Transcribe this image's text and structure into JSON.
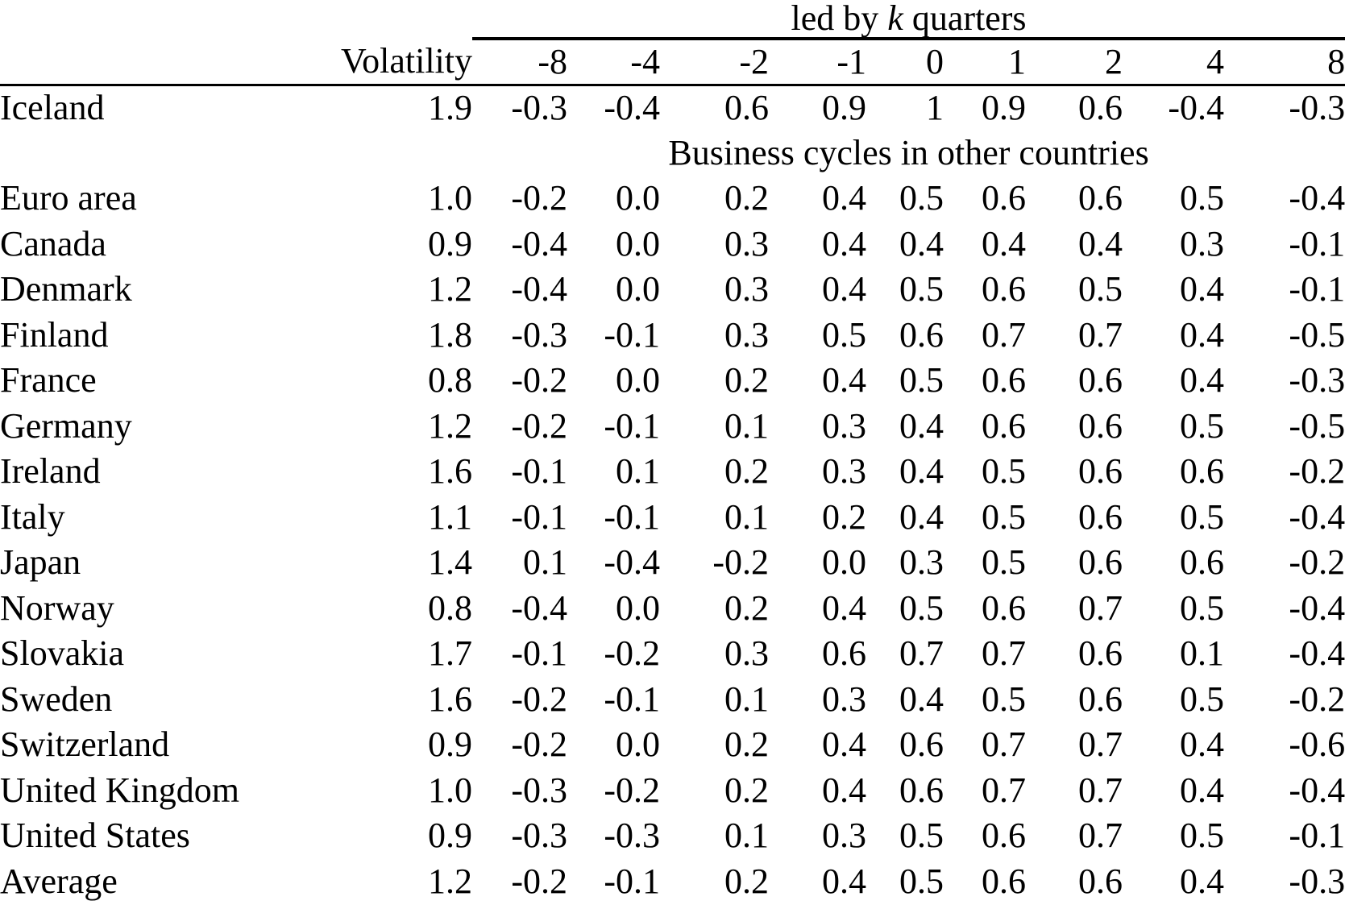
{
  "table": {
    "spanner": {
      "prefix": "led by ",
      "k": "k",
      "suffix": " quarters"
    },
    "volatility_header": "Volatility",
    "lead_headers": [
      "-8",
      "-4",
      "-2",
      "-1",
      "0",
      "1",
      "2",
      "4",
      "8"
    ],
    "body": [
      {
        "type": "data",
        "country": "Iceland",
        "volatility": "1.9",
        "values": [
          "-0.3",
          "-0.4",
          "0.6",
          "0.9",
          "1",
          "0.9",
          "0.6",
          "-0.4",
          "-0.3"
        ]
      },
      {
        "type": "section",
        "label": "Business cycles in other countries"
      },
      {
        "type": "data",
        "country": "Euro area",
        "volatility": "1.0",
        "values": [
          "-0.2",
          "0.0",
          "0.2",
          "0.4",
          "0.5",
          "0.6",
          "0.6",
          "0.5",
          "-0.4"
        ]
      },
      {
        "type": "data",
        "country": "Canada",
        "volatility": "0.9",
        "values": [
          "-0.4",
          "0.0",
          "0.3",
          "0.4",
          "0.4",
          "0.4",
          "0.4",
          "0.3",
          "-0.1"
        ]
      },
      {
        "type": "data",
        "country": "Denmark",
        "volatility": "1.2",
        "values": [
          "-0.4",
          "0.0",
          "0.3",
          "0.4",
          "0.5",
          "0.6",
          "0.5",
          "0.4",
          "-0.1"
        ]
      },
      {
        "type": "data",
        "country": "Finland",
        "volatility": "1.8",
        "values": [
          "-0.3",
          "-0.1",
          "0.3",
          "0.5",
          "0.6",
          "0.7",
          "0.7",
          "0.4",
          "-0.5"
        ]
      },
      {
        "type": "data",
        "country": "France",
        "volatility": "0.8",
        "values": [
          "-0.2",
          "0.0",
          "0.2",
          "0.4",
          "0.5",
          "0.6",
          "0.6",
          "0.4",
          "-0.3"
        ]
      },
      {
        "type": "data",
        "country": "Germany",
        "volatility": "1.2",
        "values": [
          "-0.2",
          "-0.1",
          "0.1",
          "0.3",
          "0.4",
          "0.6",
          "0.6",
          "0.5",
          "-0.5"
        ]
      },
      {
        "type": "data",
        "country": "Ireland",
        "volatility": "1.6",
        "values": [
          "-0.1",
          "0.1",
          "0.2",
          "0.3",
          "0.4",
          "0.5",
          "0.6",
          "0.6",
          "-0.2"
        ]
      },
      {
        "type": "data",
        "country": "Italy",
        "volatility": "1.1",
        "values": [
          "-0.1",
          "-0.1",
          "0.1",
          "0.2",
          "0.4",
          "0.5",
          "0.6",
          "0.5",
          "-0.4"
        ]
      },
      {
        "type": "data",
        "country": "Japan",
        "volatility": "1.4",
        "values": [
          "0.1",
          "-0.4",
          "-0.2",
          "0.0",
          "0.3",
          "0.5",
          "0.6",
          "0.6",
          "-0.2"
        ]
      },
      {
        "type": "data",
        "country": "Norway",
        "volatility": "0.8",
        "values": [
          "-0.4",
          "0.0",
          "0.2",
          "0.4",
          "0.5",
          "0.6",
          "0.7",
          "0.5",
          "-0.4"
        ]
      },
      {
        "type": "data",
        "country": "Slovakia",
        "volatility": "1.7",
        "values": [
          "-0.1",
          "-0.2",
          "0.3",
          "0.6",
          "0.7",
          "0.7",
          "0.6",
          "0.1",
          "-0.4"
        ]
      },
      {
        "type": "data",
        "country": "Sweden",
        "volatility": "1.6",
        "values": [
          "-0.2",
          "-0.1",
          "0.1",
          "0.3",
          "0.4",
          "0.5",
          "0.6",
          "0.5",
          "-0.2"
        ]
      },
      {
        "type": "data",
        "country": "Switzerland",
        "volatility": "0.9",
        "values": [
          "-0.2",
          "0.0",
          "0.2",
          "0.4",
          "0.6",
          "0.7",
          "0.7",
          "0.4",
          "-0.6"
        ]
      },
      {
        "type": "data",
        "country": "United Kingdom",
        "volatility": "1.0",
        "values": [
          "-0.3",
          "-0.2",
          "0.2",
          "0.4",
          "0.6",
          "0.7",
          "0.7",
          "0.4",
          "-0.4"
        ]
      },
      {
        "type": "data",
        "country": "United States",
        "volatility": "0.9",
        "values": [
          "-0.3",
          "-0.3",
          "0.1",
          "0.3",
          "0.5",
          "0.6",
          "0.7",
          "0.5",
          "-0.1"
        ]
      },
      {
        "type": "data",
        "country": "Average",
        "volatility": "1.2",
        "values": [
          "-0.2",
          "-0.1",
          "0.2",
          "0.4",
          "0.5",
          "0.6",
          "0.6",
          "0.4",
          "-0.3"
        ]
      }
    ]
  }
}
